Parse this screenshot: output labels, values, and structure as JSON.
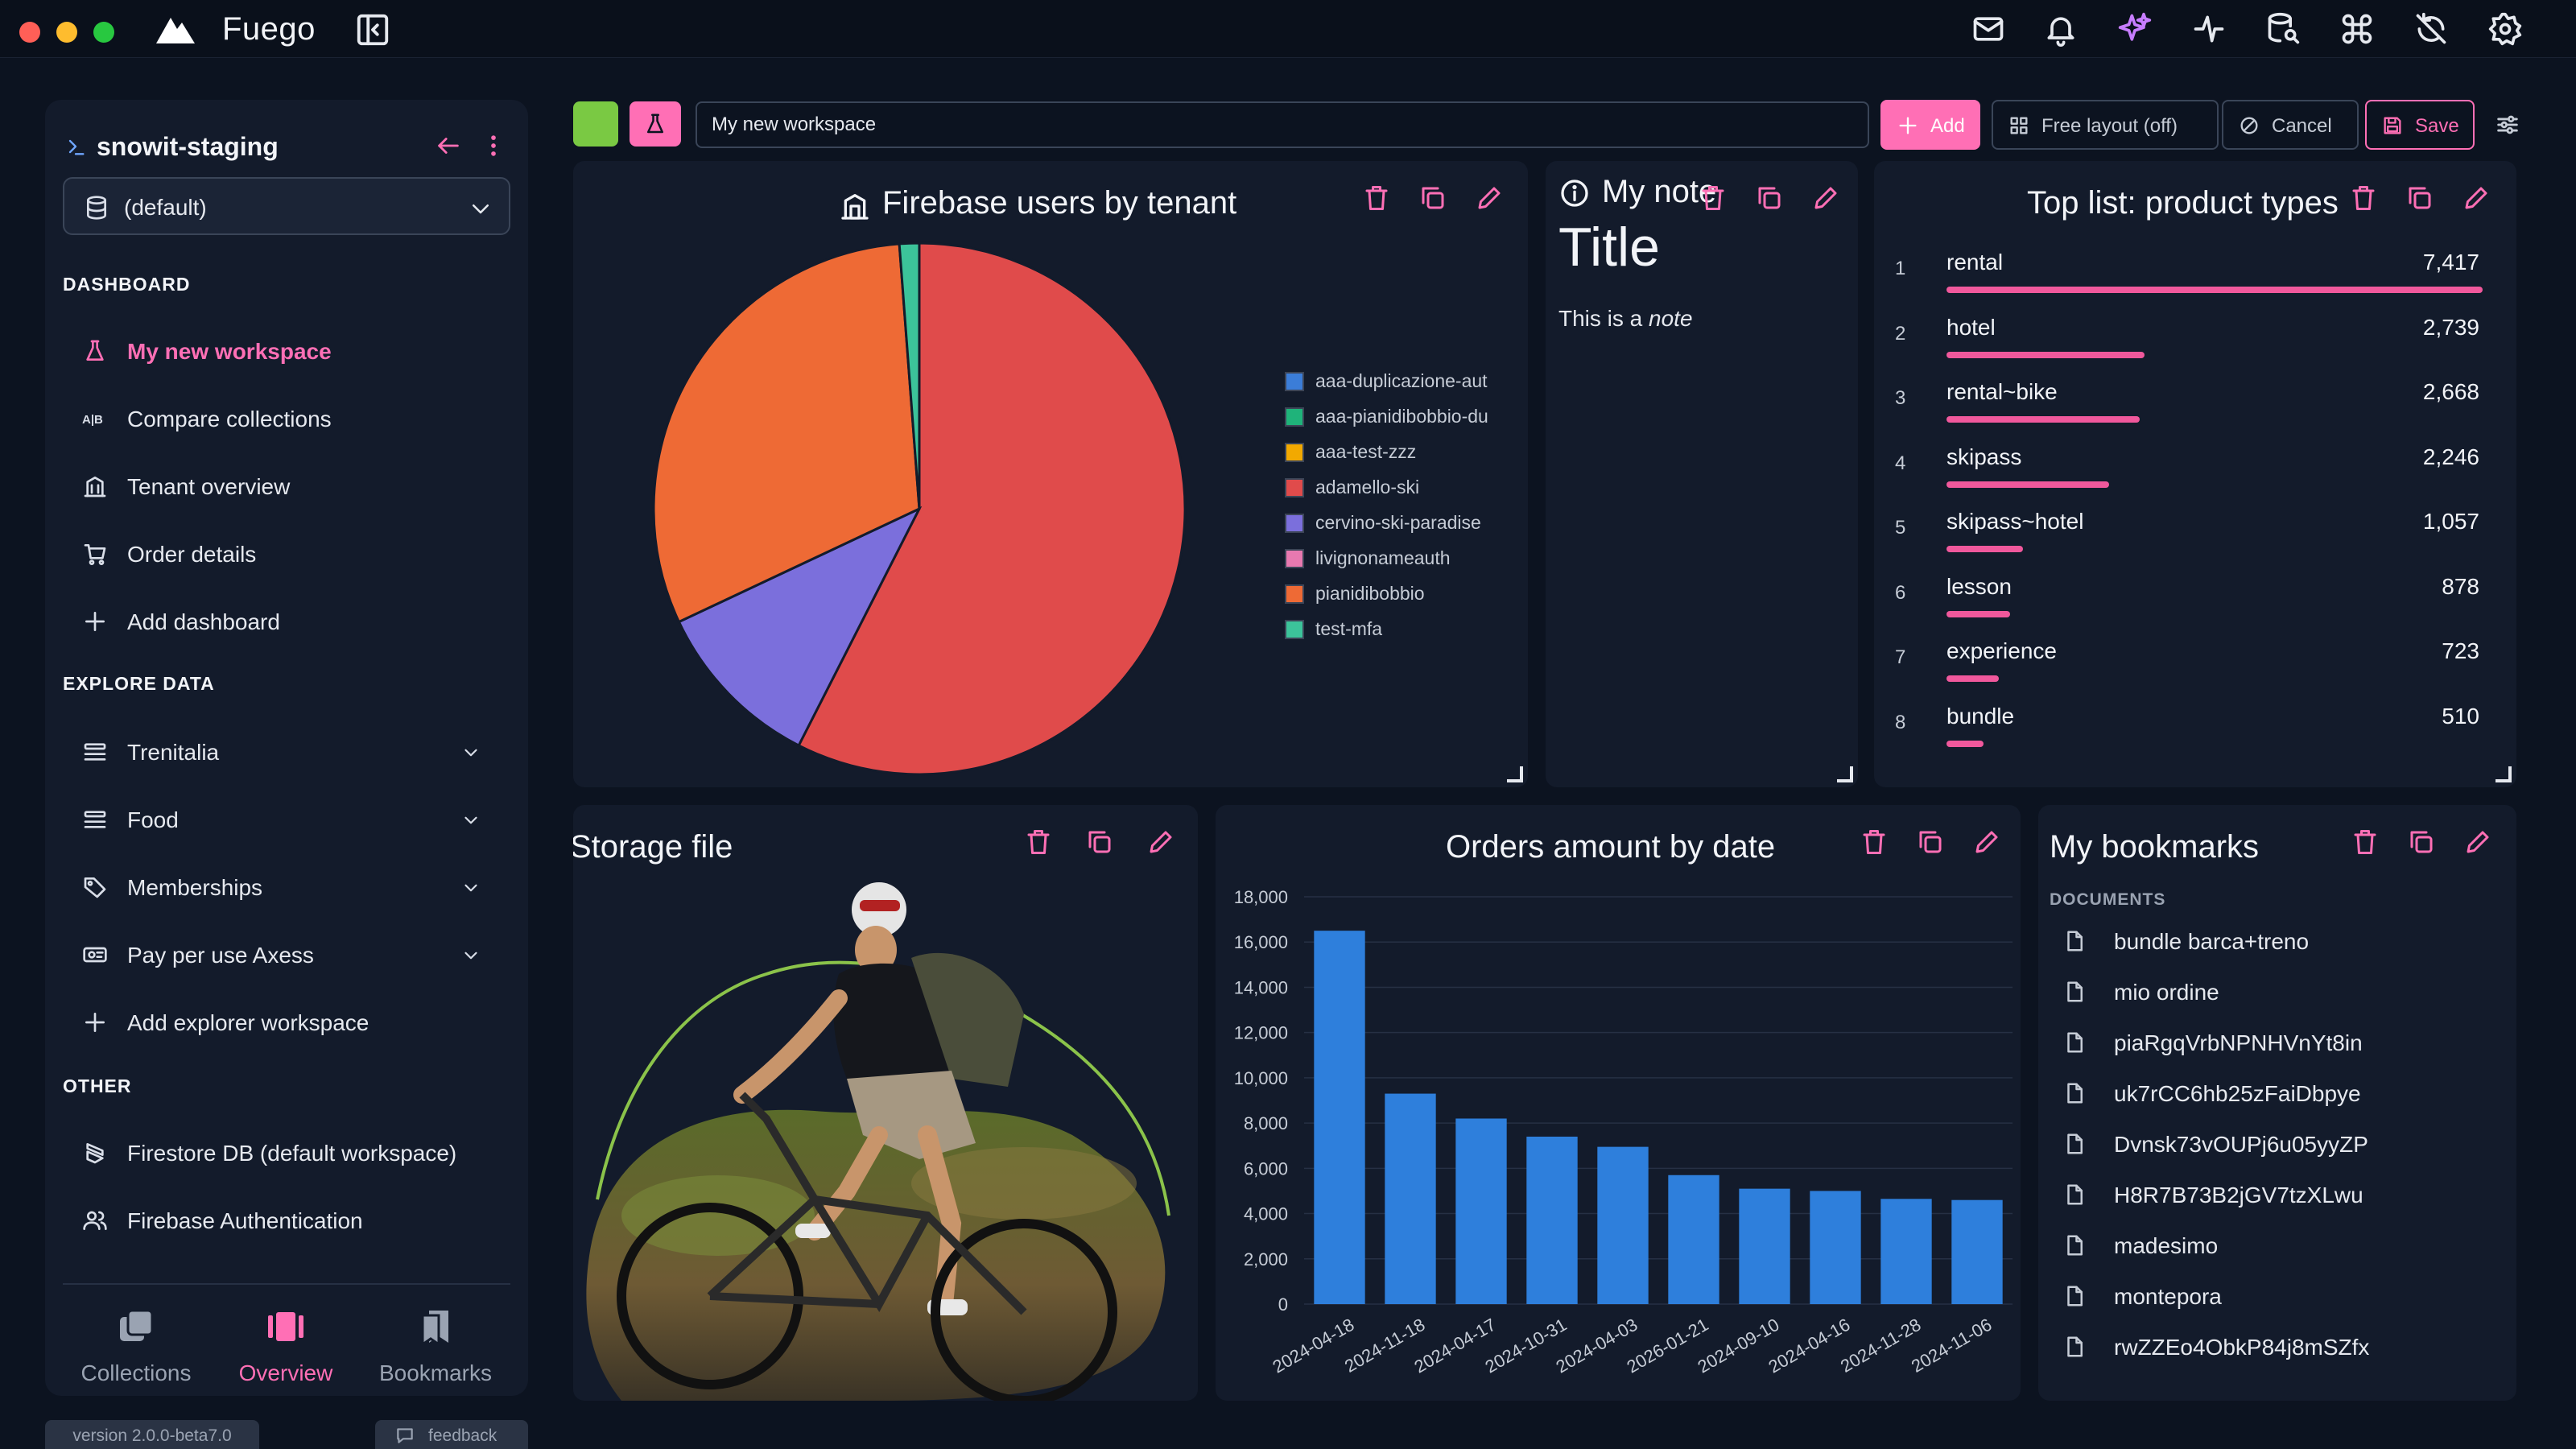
{
  "app": {
    "name": "Fuego"
  },
  "colors": {
    "accent": "#ff6fb5",
    "workspace_color": "#7ac943",
    "bar_blue": "#2e7fdc"
  },
  "titlebar_icons": [
    "mail-icon",
    "bell-icon",
    "sparkle-icon",
    "activity-icon",
    "database-search-icon",
    "command-icon",
    "sync-off-icon",
    "gear-icon"
  ],
  "sidebar": {
    "project": "snowit-staging",
    "database": "(default)",
    "sections": {
      "dashboard": "DASHBOARD",
      "explore": "EXPLORE DATA",
      "other": "OTHER"
    },
    "dashboard_items": [
      {
        "label": "My new workspace",
        "icon": "flask-icon",
        "active": true
      },
      {
        "label": "Compare collections",
        "icon": "compare-icon"
      },
      {
        "label": "Tenant overview",
        "icon": "building-icon"
      },
      {
        "label": "Order details",
        "icon": "cart-icon"
      },
      {
        "label": "Add dashboard",
        "icon": "plus-icon"
      }
    ],
    "explore_items": [
      {
        "label": "Trenitalia",
        "icon": "list-icon"
      },
      {
        "label": "Food",
        "icon": "list-icon"
      },
      {
        "label": "Memberships",
        "icon": "tag-icon"
      },
      {
        "label": "Pay per use Axess",
        "icon": "ticket-icon"
      },
      {
        "label": "Add explorer workspace",
        "icon": "plus-icon"
      }
    ],
    "other_items": [
      {
        "label": "Firestore DB (default workspace)",
        "icon": "firestore-icon"
      },
      {
        "label": "Firebase Authentication",
        "icon": "users-icon"
      }
    ],
    "bottom_tabs": [
      {
        "label": "Collections",
        "icon": "collections-icon"
      },
      {
        "label": "Overview",
        "icon": "overview-icon",
        "active": true
      },
      {
        "label": "Bookmarks",
        "icon": "bookmarks-icon"
      }
    ],
    "version": "version 2.0.0-beta7.0",
    "feedback": "feedback"
  },
  "toolbar": {
    "workspace_name": "My new workspace",
    "add": "Add",
    "free_layout": "Free layout (off)",
    "cancel": "Cancel",
    "save": "Save"
  },
  "widgets": {
    "firebase_users": {
      "title": "Firebase users by tenant",
      "legend": [
        {
          "label": "aaa-duplicazione-aut",
          "color": "#3b7dd8"
        },
        {
          "label": "aaa-pianidibobbio-du",
          "color": "#1fb37a"
        },
        {
          "label": "aaa-test-zzz",
          "color": "#f2a900"
        },
        {
          "label": "adamello-ski",
          "color": "#e04b4b"
        },
        {
          "label": "cervino-ski-paradise",
          "color": "#7b6fdc"
        },
        {
          "label": "livignonameauth",
          "color": "#e879b0"
        },
        {
          "label": "pianidibobbio",
          "color": "#ee6a35"
        },
        {
          "label": "test-mfa",
          "color": "#3cc39a"
        }
      ]
    },
    "note": {
      "title": "My note",
      "heading": "Title",
      "body_prefix": "This is a ",
      "body_emphasis": "note"
    },
    "top_list": {
      "title": "Top list: product types",
      "items": [
        {
          "rank": "1",
          "name": "rental",
          "value": "7,417",
          "share": 1.0
        },
        {
          "rank": "2",
          "name": "hotel",
          "value": "2,739",
          "share": 0.369
        },
        {
          "rank": "3",
          "name": "rental~bike",
          "value": "2,668",
          "share": 0.36
        },
        {
          "rank": "4",
          "name": "skipass",
          "value": "2,246",
          "share": 0.303
        },
        {
          "rank": "5",
          "name": "skipass~hotel",
          "value": "1,057",
          "share": 0.143
        },
        {
          "rank": "6",
          "name": "lesson",
          "value": "878",
          "share": 0.118
        },
        {
          "rank": "7",
          "name": "experience",
          "value": "723",
          "share": 0.097
        },
        {
          "rank": "8",
          "name": "bundle",
          "value": "510",
          "share": 0.069
        }
      ]
    },
    "storage_file": {
      "title": "Storage file"
    },
    "orders": {
      "title": "Orders amount by date"
    },
    "bookmarks": {
      "title": "My bookmarks",
      "section": "DOCUMENTS",
      "items": [
        "bundle barca+treno",
        "mio ordine",
        "piaRgqVrbNPNHVnYt8in",
        "uk7rCC6hb25zFaiDbpye",
        "Dvnsk73vOUPj6u05yyZP",
        "H8R7B73B2jGV7tzXLwu",
        "madesimo",
        "montepora",
        "rwZZEo4ObkP84j8mSZfx"
      ]
    }
  },
  "chart_data": [
    {
      "type": "pie",
      "labels": [
        "adamello-ski",
        "cervino-ski-paradise",
        "pianidibobbio",
        "test-mfa"
      ],
      "values": [
        57.5,
        10.5,
        30.8,
        1.2
      ],
      "colors": [
        "#e04b4b",
        "#7b6fdc",
        "#ee6a35",
        "#3cc39a"
      ]
    },
    {
      "type": "bar",
      "categories": [
        "2024-04-18",
        "2024-11-18",
        "2024-04-17",
        "2024-10-31",
        "2024-04-03",
        "2026-01-21",
        "2024-09-10",
        "2024-04-16",
        "2024-11-28",
        "2024-11-06"
      ],
      "values": [
        16500,
        9300,
        8200,
        7400,
        6950,
        5700,
        5100,
        5000,
        4650,
        4600
      ],
      "ylim": [
        0,
        18000
      ],
      "yticks": [
        0,
        2000,
        4000,
        6000,
        8000,
        10000,
        12000,
        14000,
        16000,
        18000
      ],
      "grid": true,
      "color": "#2e7fdc"
    }
  ]
}
